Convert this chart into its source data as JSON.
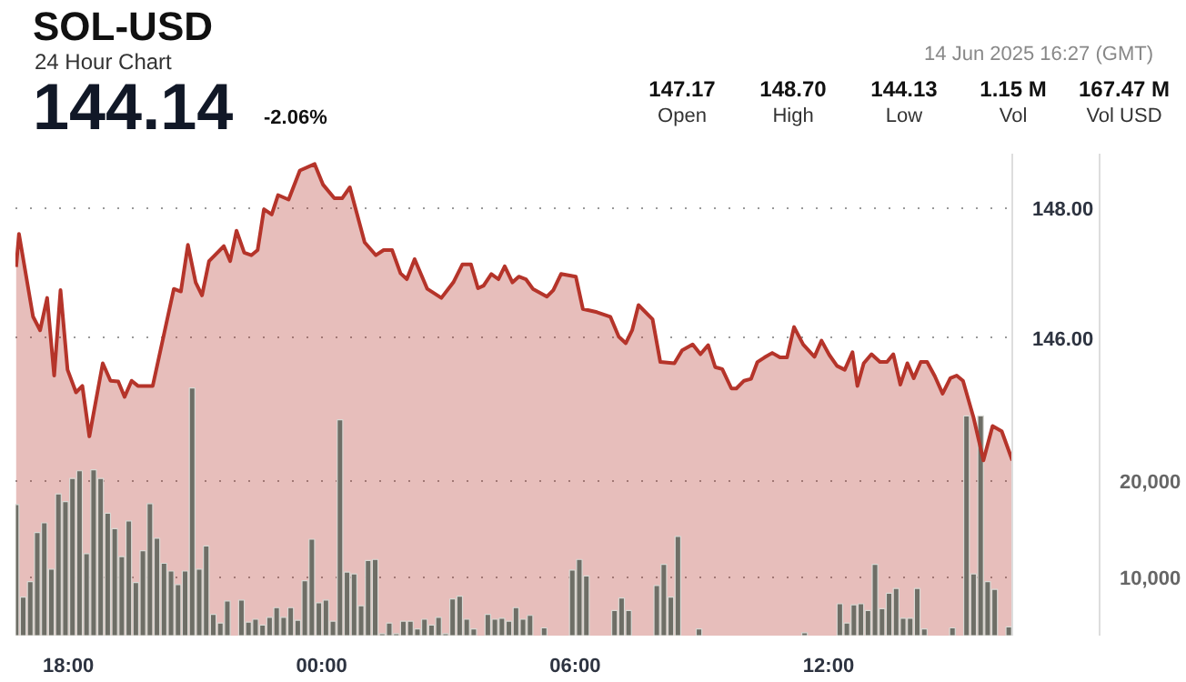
{
  "chart_data": {
    "type": "area",
    "title": "SOL-USD",
    "subtitle": "24 Hour Chart",
    "annotations": [
      "144.14",
      "-2.06%",
      "147.17",
      "Open",
      "148.70",
      "High",
      "144.13",
      "Low",
      "1.15 M",
      "Vol",
      "167.47 M",
      "Vol USD",
      "14 Jun 2025 16:27 (GMT)"
    ],
    "xlim": [
      "2025-06-13T16:45",
      "2025-06-14T16:21"
    ],
    "xticks": [
      {
        "value": "2025-06-13T18:00",
        "label": "18:00"
      },
      {
        "value": "2025-06-14T00:00",
        "label": "00:00"
      },
      {
        "value": "2025-06-14T06:00",
        "label": "06:00"
      },
      {
        "value": "2025-06-14T12:00",
        "label": "12:00"
      }
    ],
    "ylim": [
      141.4,
      148.85
    ],
    "yticks": [
      {
        "value": 146,
        "label": "146.00"
      },
      {
        "value": 148,
        "label": "148.00"
      }
    ],
    "y2lim": [
      4000,
      54000
    ],
    "y2ticks": [
      {
        "value": 10000,
        "label": "10,000"
      },
      {
        "value": 20000,
        "label": "20,000"
      }
    ],
    "grid": "y",
    "series": [
      {
        "color": "#b5342a",
        "x": [
          "2025-06-13T16:46",
          "2025-06-13T16:50",
          "2025-06-13T17:10",
          "2025-06-13T17:20",
          "2025-06-13T17:30",
          "2025-06-13T17:40",
          "2025-06-13T17:49",
          "2025-06-13T17:59",
          "2025-06-13T18:11",
          "2025-06-13T18:20",
          "2025-06-13T18:30",
          "2025-06-13T18:49",
          "2025-06-13T19:00",
          "2025-06-13T19:11",
          "2025-06-13T19:20",
          "2025-06-13T19:30",
          "2025-06-13T19:39",
          "2025-06-13T20:00",
          "2025-06-13T20:30",
          "2025-06-13T20:40",
          "2025-06-13T20:50",
          "2025-06-13T21:01",
          "2025-06-13T21:10",
          "2025-06-13T21:20",
          "2025-06-13T21:41",
          "2025-06-13T21:50",
          "2025-06-13T21:59",
          "2025-06-13T22:10",
          "2025-06-13T22:20",
          "2025-06-13T22:29",
          "2025-06-13T22:38",
          "2025-06-13T22:49",
          "2025-06-13T22:58",
          "2025-06-13T23:13",
          "2025-06-13T23:29",
          "2025-06-13T23:50",
          "2025-06-14T00:02",
          "2025-06-14T00:18",
          "2025-06-14T00:29",
          "2025-06-14T00:40",
          "2025-06-14T01:01",
          "2025-06-14T01:17",
          "2025-06-14T01:28",
          "2025-06-14T01:40",
          "2025-06-14T01:52",
          "2025-06-14T02:01",
          "2025-06-14T02:12",
          "2025-06-14T02:30",
          "2025-06-14T02:50",
          "2025-06-14T03:07",
          "2025-06-14T03:20",
          "2025-06-14T03:32",
          "2025-06-14T03:42",
          "2025-06-14T03:50",
          "2025-06-14T04:01",
          "2025-06-14T04:11",
          "2025-06-14T04:20",
          "2025-06-14T04:31",
          "2025-06-14T04:40",
          "2025-06-14T04:50",
          "2025-06-14T05:00",
          "2025-06-14T05:20",
          "2025-06-14T05:29",
          "2025-06-14T05:40",
          "2025-06-14T06:01",
          "2025-06-14T06:11",
          "2025-06-14T06:31",
          "2025-06-14T06:50",
          "2025-06-14T07:02",
          "2025-06-14T07:12",
          "2025-06-14T07:21",
          "2025-06-14T07:30",
          "2025-06-14T07:50",
          "2025-06-14T08:01",
          "2025-06-14T08:21",
          "2025-06-14T08:32",
          "2025-06-14T08:47",
          "2025-06-14T08:58",
          "2025-06-14T09:09",
          "2025-06-14T09:19",
          "2025-06-14T09:29",
          "2025-06-14T09:42",
          "2025-06-14T09:49",
          "2025-06-14T10:00",
          "2025-06-14T10:10",
          "2025-06-14T10:19",
          "2025-06-14T10:29",
          "2025-06-14T10:40",
          "2025-06-14T10:51",
          "2025-06-14T11:01",
          "2025-06-14T11:11",
          "2025-06-14T11:24",
          "2025-06-14T11:40",
          "2025-06-14T11:50",
          "2025-06-14T12:01",
          "2025-06-14T12:12",
          "2025-06-14T12:23",
          "2025-06-14T12:34",
          "2025-06-14T12:41",
          "2025-06-14T12:50",
          "2025-06-14T13:01",
          "2025-06-14T13:13",
          "2025-06-14T13:23",
          "2025-06-14T13:32",
          "2025-06-14T13:42",
          "2025-06-14T13:52",
          "2025-06-14T14:01",
          "2025-06-14T14:11",
          "2025-06-14T14:20",
          "2025-06-14T14:31",
          "2025-06-14T14:42",
          "2025-06-14T14:53",
          "2025-06-14T15:02",
          "2025-06-14T15:11",
          "2025-06-14T15:26",
          "2025-06-14T15:40",
          "2025-06-14T15:53",
          "2025-06-14T16:06",
          "2025-06-14T16:21"
        ],
        "values": [
          147.1,
          147.61,
          146.33,
          146.12,
          146.62,
          145.42,
          146.74,
          145.51,
          145.16,
          145.26,
          144.48,
          145.61,
          145.34,
          145.33,
          145.09,
          145.34,
          145.26,
          145.26,
          146.76,
          146.72,
          147.44,
          146.86,
          146.66,
          147.19,
          147.42,
          147.19,
          147.66,
          147.32,
          147.28,
          147.36,
          147.99,
          147.91,
          148.21,
          148.14,
          148.59,
          148.69,
          148.37,
          148.16,
          148.16,
          148.33,
          147.48,
          147.28,
          147.36,
          147.36,
          147.0,
          146.91,
          147.22,
          146.76,
          146.62,
          146.86,
          147.14,
          147.14,
          146.77,
          146.81,
          146.99,
          146.91,
          147.11,
          146.86,
          146.95,
          146.91,
          146.76,
          146.64,
          146.74,
          146.99,
          146.95,
          146.45,
          146.4,
          146.33,
          146.02,
          145.92,
          146.12,
          146.51,
          146.29,
          145.63,
          145.61,
          145.81,
          145.9,
          145.75,
          145.89,
          145.55,
          145.52,
          145.22,
          145.22,
          145.34,
          145.37,
          145.63,
          145.7,
          145.77,
          145.7,
          145.7,
          146.17,
          145.9,
          145.71,
          145.96,
          145.74,
          145.57,
          145.51,
          145.78,
          145.26,
          145.61,
          145.75,
          145.63,
          145.63,
          145.75,
          145.28,
          145.61,
          145.38,
          145.63,
          145.63,
          145.41,
          145.14,
          145.38,
          145.42,
          145.34,
          144.77,
          144.11,
          144.64,
          144.56,
          144.11
        ]
      },
      {
        "type": "bar",
        "axis": "y2",
        "color": "#6e6e66",
        "x": [
          "2025-06-13T16:46",
          "2025-06-13T16:56",
          "2025-06-13T17:06",
          "2025-06-13T17:16",
          "2025-06-13T17:26",
          "2025-06-13T17:36",
          "2025-06-13T17:46",
          "2025-06-13T17:56",
          "2025-06-13T18:06",
          "2025-06-13T18:16",
          "2025-06-13T18:26",
          "2025-06-13T18:36",
          "2025-06-13T18:46",
          "2025-06-13T18:56",
          "2025-06-13T19:06",
          "2025-06-13T19:16",
          "2025-06-13T19:26",
          "2025-06-13T19:36",
          "2025-06-13T19:46",
          "2025-06-13T19:56",
          "2025-06-13T20:06",
          "2025-06-13T20:16",
          "2025-06-13T20:26",
          "2025-06-13T20:36",
          "2025-06-13T20:46",
          "2025-06-13T20:56",
          "2025-06-13T21:06",
          "2025-06-13T21:16",
          "2025-06-13T21:26",
          "2025-06-13T21:36",
          "2025-06-13T21:46",
          "2025-06-13T21:56",
          "2025-06-13T22:06",
          "2025-06-13T22:16",
          "2025-06-13T22:26",
          "2025-06-13T22:36",
          "2025-06-13T22:46",
          "2025-06-13T22:56",
          "2025-06-13T23:06",
          "2025-06-13T23:16",
          "2025-06-13T23:26",
          "2025-06-13T23:36",
          "2025-06-13T23:46",
          "2025-06-13T23:56",
          "2025-06-14T00:06",
          "2025-06-14T00:16",
          "2025-06-14T00:26",
          "2025-06-14T00:36",
          "2025-06-14T00:46",
          "2025-06-14T00:56",
          "2025-06-14T01:06",
          "2025-06-14T01:16",
          "2025-06-14T01:26",
          "2025-06-14T01:36",
          "2025-06-14T01:46",
          "2025-06-14T01:56",
          "2025-06-14T02:06",
          "2025-06-14T02:16",
          "2025-06-14T02:26",
          "2025-06-14T02:36",
          "2025-06-14T02:46",
          "2025-06-14T02:56",
          "2025-06-14T03:06",
          "2025-06-14T03:16",
          "2025-06-14T03:26",
          "2025-06-14T03:36",
          "2025-06-14T03:46",
          "2025-06-14T03:56",
          "2025-06-14T04:06",
          "2025-06-14T04:16",
          "2025-06-14T04:26",
          "2025-06-14T04:36",
          "2025-06-14T04:46",
          "2025-06-14T04:56",
          "2025-06-14T05:06",
          "2025-06-14T05:16",
          "2025-06-14T05:26",
          "2025-06-14T05:36",
          "2025-06-14T05:46",
          "2025-06-14T05:56",
          "2025-06-14T06:06",
          "2025-06-14T06:16",
          "2025-06-14T06:26",
          "2025-06-14T06:36",
          "2025-06-14T06:46",
          "2025-06-14T06:56",
          "2025-06-14T07:06",
          "2025-06-14T07:16",
          "2025-06-14T07:26",
          "2025-06-14T07:36",
          "2025-06-14T07:46",
          "2025-06-14T07:56",
          "2025-06-14T08:06",
          "2025-06-14T08:16",
          "2025-06-14T08:26",
          "2025-06-14T08:36",
          "2025-06-14T08:46",
          "2025-06-14T08:56",
          "2025-06-14T09:06",
          "2025-06-14T09:16",
          "2025-06-14T09:26",
          "2025-06-14T09:36",
          "2025-06-14T09:46",
          "2025-06-14T09:56",
          "2025-06-14T10:06",
          "2025-06-14T10:16",
          "2025-06-14T10:26",
          "2025-06-14T10:36",
          "2025-06-14T10:46",
          "2025-06-14T10:56",
          "2025-06-14T11:06",
          "2025-06-14T11:16",
          "2025-06-14T11:26",
          "2025-06-14T11:36",
          "2025-06-14T11:46",
          "2025-06-14T11:56",
          "2025-06-14T12:06",
          "2025-06-14T12:16",
          "2025-06-14T12:26",
          "2025-06-14T12:36",
          "2025-06-14T12:46",
          "2025-06-14T12:56",
          "2025-06-14T13:06",
          "2025-06-14T13:16",
          "2025-06-14T13:26",
          "2025-06-14T13:36",
          "2025-06-14T13:46",
          "2025-06-14T13:56",
          "2025-06-14T14:06",
          "2025-06-14T14:16",
          "2025-06-14T14:26",
          "2025-06-14T14:36",
          "2025-06-14T14:46",
          "2025-06-14T14:56",
          "2025-06-14T15:06",
          "2025-06-14T15:16",
          "2025-06-14T15:26",
          "2025-06-14T15:36",
          "2025-06-14T15:46",
          "2025-06-14T15:56",
          "2025-06-14T16:06",
          "2025-06-14T16:16"
        ],
        "values": [
          17600,
          8000,
          9600,
          14700,
          15700,
          10900,
          18700,
          17900,
          20300,
          21100,
          12500,
          21200,
          20300,
          16700,
          15100,
          12200,
          15900,
          9500,
          12800,
          17700,
          14100,
          11500,
          10700,
          9300,
          10700,
          29700,
          10900,
          13300,
          6200,
          5300,
          7600,
          null,
          7700,
          5400,
          5700,
          5100,
          5900,
          6900,
          5900,
          6900,
          5600,
          9700,
          14000,
          7400,
          7700,
          5500,
          26400,
          10600,
          10400,
          7100,
          11800,
          11900,
          4200,
          5300,
          4200,
          5500,
          5500,
          4700,
          5700,
          5100,
          5900,
          4200,
          7800,
          8100,
          5700,
          4700,
          null,
          6200,
          5700,
          5800,
          5500,
          6900,
          5700,
          6100,
          null,
          4800,
          null,
          null,
          null,
          10800,
          11900,
          10200,
          null,
          null,
          null,
          6600,
          7900,
          6600,
          null,
          null,
          null,
          9200,
          11400,
          8000,
          14300,
          null,
          null,
          4700,
          null,
          null,
          null,
          null,
          null,
          null,
          null,
          null,
          null,
          null,
          null,
          null,
          null,
          null,
          4300,
          null,
          null,
          null,
          null,
          7300,
          5300,
          7200,
          7300,
          6600,
          11400,
          6800,
          8400,
          8900,
          5800,
          5800,
          8900,
          4700,
          null,
          null,
          null,
          4800,
          null,
          26800,
          10400,
          26800,
          9600,
          8800,
          null,
          4900
        ]
      }
    ]
  }
}
